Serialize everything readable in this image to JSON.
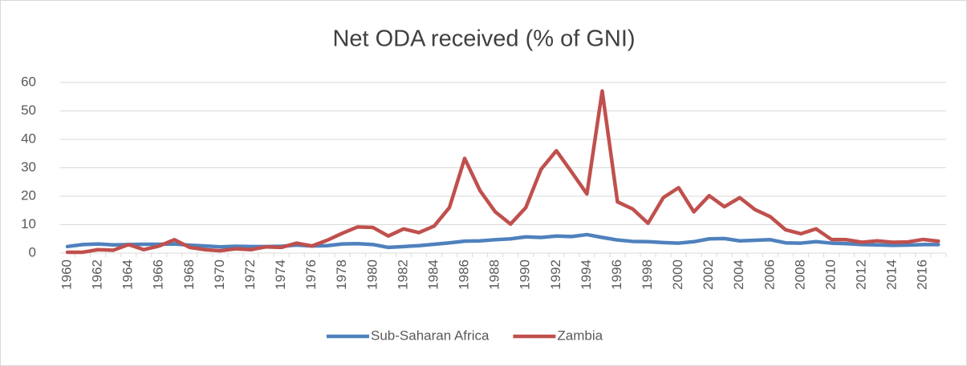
{
  "chart_data": {
    "type": "line",
    "title": "Net ODA received (% of GNI)",
    "categories": [
      "1960",
      null,
      "1962",
      null,
      "1964",
      null,
      "1966",
      null,
      "1968",
      null,
      "1970",
      null,
      "1972",
      null,
      "1974",
      null,
      "1976",
      null,
      "1978",
      null,
      "1980",
      null,
      "1982",
      null,
      "1984",
      null,
      "1986",
      null,
      "1988",
      null,
      "1990",
      null,
      "1992",
      null,
      "1994",
      null,
      "1996",
      null,
      "1998",
      null,
      "2000",
      null,
      "2002",
      null,
      "2004",
      null,
      "2006",
      null,
      "2008",
      null,
      "2010",
      null,
      "2012",
      null,
      "2014",
      null,
      "2016",
      null
    ],
    "series": [
      {
        "name": "Sub-Saharan Africa",
        "color": "#4f81bd",
        "values": [
          2.3,
          3.0,
          3.2,
          2.9,
          3.0,
          3.1,
          3.1,
          3.2,
          2.8,
          2.5,
          2.2,
          2.4,
          2.3,
          2.3,
          2.4,
          2.8,
          2.5,
          2.6,
          3.2,
          3.3,
          3.0,
          2.0,
          2.3,
          2.6,
          3.1,
          3.6,
          4.2,
          4.3,
          4.7,
          5.0,
          5.7,
          5.5,
          6.0,
          5.8,
          6.5,
          5.5,
          4.6,
          4.1,
          4.0,
          3.7,
          3.5,
          4.0,
          5.0,
          5.1,
          4.3,
          4.5,
          4.7,
          3.6,
          3.5,
          4.0,
          3.5,
          3.3,
          3.0,
          2.9,
          2.7,
          2.8,
          3.0,
          3.0
        ]
      },
      {
        "name": "Zambia",
        "color": "#c0504d",
        "values": [
          0.3,
          0.3,
          1.2,
          1.0,
          3.0,
          1.2,
          2.5,
          4.7,
          2.0,
          1.2,
          0.8,
          1.5,
          1.2,
          2.2,
          2.0,
          3.5,
          2.5,
          4.5,
          7.0,
          9.2,
          9.0,
          6.0,
          8.5,
          7.2,
          9.5,
          16.0,
          33.3,
          22.0,
          14.5,
          10.2,
          16.0,
          29.5,
          36.0,
          28.5,
          20.8,
          57.0,
          18.0,
          15.5,
          10.5,
          19.5,
          23.0,
          14.5,
          20.2,
          16.3,
          19.5,
          15.3,
          12.8,
          8.2,
          6.8,
          8.5,
          4.8,
          4.7,
          3.8,
          4.3,
          3.8,
          3.9,
          4.8,
          4.2
        ]
      }
    ],
    "ylim": [
      0,
      60
    ],
    "yticks": [
      0,
      10,
      20,
      30,
      40,
      50,
      60
    ],
    "grid": true,
    "legend": "bottom"
  }
}
